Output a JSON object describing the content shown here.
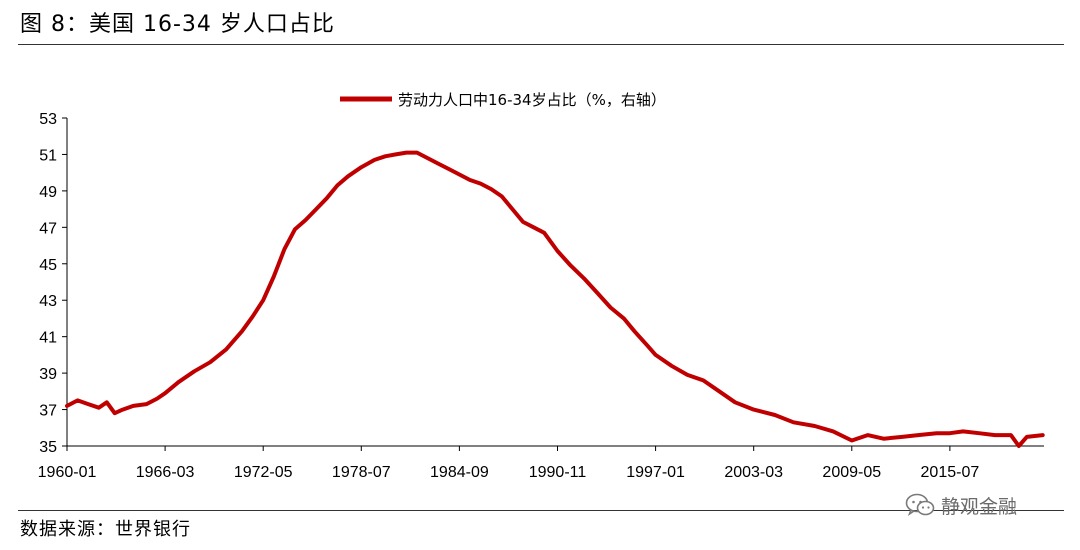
{
  "header": {
    "title": "图 8：美国 16-34 岁人口占比"
  },
  "footer": {
    "source": "数据来源：世界银行"
  },
  "watermark": {
    "text": "静观金融",
    "icon": "wechat-icon",
    "color": "#6b6b6b"
  },
  "chart_data": {
    "type": "line",
    "legend": {
      "position": "top-center"
    },
    "series": [
      {
        "name": "劳动力人口中16-34岁占比（%，右轴）",
        "color": "#c00000",
        "points": [
          [
            "1960-01",
            37.2
          ],
          [
            "1960-09",
            37.5
          ],
          [
            "1961-05",
            37.3
          ],
          [
            "1962-01",
            37.1
          ],
          [
            "1962-07",
            37.4
          ],
          [
            "1963-01",
            36.8
          ],
          [
            "1963-07",
            37.0
          ],
          [
            "1964-03",
            37.2
          ],
          [
            "1965-01",
            37.3
          ],
          [
            "1965-09",
            37.6
          ],
          [
            "1966-03",
            37.9
          ],
          [
            "1967-01",
            38.5
          ],
          [
            "1968-01",
            39.1
          ],
          [
            "1969-01",
            39.6
          ],
          [
            "1970-01",
            40.3
          ],
          [
            "1971-01",
            41.3
          ],
          [
            "1971-09",
            42.1
          ],
          [
            "1972-05",
            43.0
          ],
          [
            "1973-01",
            44.3
          ],
          [
            "1973-09",
            45.8
          ],
          [
            "1974-05",
            46.9
          ],
          [
            "1975-01",
            47.4
          ],
          [
            "1975-09",
            48.0
          ],
          [
            "1976-05",
            48.6
          ],
          [
            "1977-01",
            49.3
          ],
          [
            "1977-09",
            49.8
          ],
          [
            "1978-07",
            50.3
          ],
          [
            "1979-05",
            50.7
          ],
          [
            "1980-01",
            50.9
          ],
          [
            "1980-09",
            51.0
          ],
          [
            "1981-05",
            51.1
          ],
          [
            "1982-01",
            51.1
          ],
          [
            "1982-09",
            50.8
          ],
          [
            "1983-05",
            50.5
          ],
          [
            "1984-01",
            50.2
          ],
          [
            "1984-09",
            49.9
          ],
          [
            "1985-05",
            49.6
          ],
          [
            "1986-01",
            49.4
          ],
          [
            "1986-09",
            49.1
          ],
          [
            "1987-05",
            48.7
          ],
          [
            "1988-01",
            48.0
          ],
          [
            "1988-09",
            47.3
          ],
          [
            "1989-05",
            47.0
          ],
          [
            "1990-01",
            46.7
          ],
          [
            "1990-11",
            45.7
          ],
          [
            "1991-09",
            44.9
          ],
          [
            "1992-07",
            44.2
          ],
          [
            "1993-05",
            43.4
          ],
          [
            "1994-03",
            42.6
          ],
          [
            "1995-01",
            42.0
          ],
          [
            "1995-09",
            41.3
          ],
          [
            "1996-07",
            40.5
          ],
          [
            "1997-01",
            40.0
          ],
          [
            "1998-01",
            39.4
          ],
          [
            "1999-01",
            38.9
          ],
          [
            "2000-01",
            38.6
          ],
          [
            "2001-01",
            38.0
          ],
          [
            "2002-01",
            37.4
          ],
          [
            "2003-03",
            37.0
          ],
          [
            "2004-07",
            36.7
          ],
          [
            "2005-09",
            36.3
          ],
          [
            "2007-01",
            36.1
          ],
          [
            "2008-03",
            35.8
          ],
          [
            "2009-05",
            35.3
          ],
          [
            "2010-05",
            35.6
          ],
          [
            "2011-05",
            35.4
          ],
          [
            "2012-07",
            35.5
          ],
          [
            "2013-07",
            35.6
          ],
          [
            "2014-09",
            35.7
          ],
          [
            "2015-07",
            35.7
          ],
          [
            "2016-05",
            35.8
          ],
          [
            "2017-05",
            35.7
          ],
          [
            "2018-05",
            35.6
          ],
          [
            "2019-05",
            35.6
          ],
          [
            "2019-11",
            35.0
          ],
          [
            "2020-05",
            35.5
          ],
          [
            "2021-05",
            35.6
          ]
        ]
      }
    ],
    "x_ticks": [
      "1960-01",
      "1966-03",
      "1972-05",
      "1978-07",
      "1984-09",
      "1990-11",
      "1997-01",
      "2003-03",
      "2009-05",
      "2015-07"
    ],
    "xlim": [
      "1960-01",
      "2021-06"
    ],
    "y_ticks": [
      35,
      37,
      39,
      41,
      43,
      45,
      47,
      49,
      51,
      53
    ],
    "ylim": [
      35,
      53
    ],
    "grid": false
  }
}
